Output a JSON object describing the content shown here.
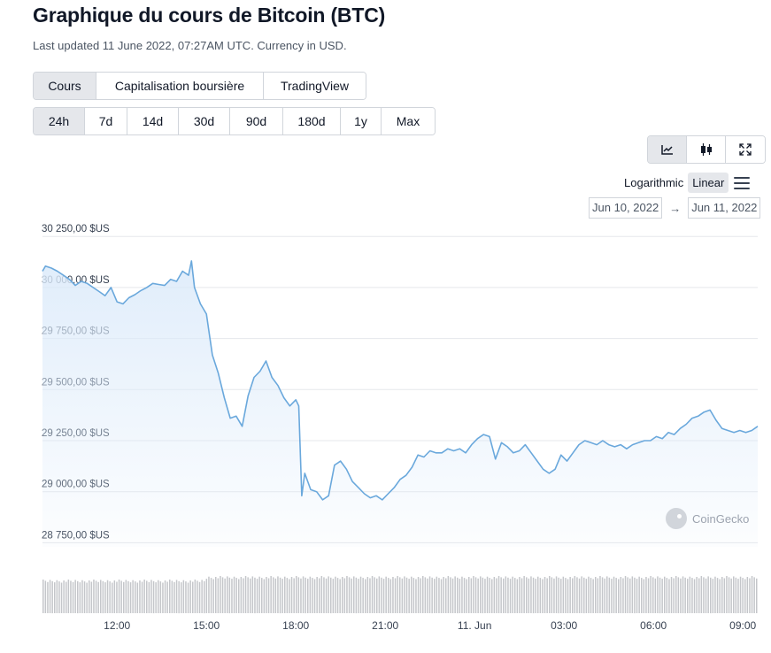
{
  "page": {
    "title": "Graphique du cours de Bitcoin (BTC)",
    "subtitle": "Last updated 11 June 2022, 07:27AM UTC. Currency in USD."
  },
  "type_tabs": [
    {
      "label": "Cours",
      "active": true
    },
    {
      "label": "Capitalisation boursière",
      "active": false
    },
    {
      "label": "TradingView",
      "active": false
    }
  ],
  "range_tabs": [
    {
      "label": "24h",
      "active": true
    },
    {
      "label": "7d",
      "active": false
    },
    {
      "label": "14d",
      "active": false
    },
    {
      "label": "30d",
      "active": false
    },
    {
      "label": "90d",
      "active": false
    },
    {
      "label": "180d",
      "active": false
    },
    {
      "label": "1y",
      "active": false
    },
    {
      "label": "Max",
      "active": false
    }
  ],
  "tools": [
    {
      "icon": "line-chart-icon",
      "active": true
    },
    {
      "icon": "candlestick-icon",
      "active": false
    },
    {
      "icon": "fullscreen-icon",
      "active": false
    }
  ],
  "scale": {
    "logarithmic": "Logarithmic",
    "linear": "Linear",
    "active": "linear"
  },
  "date_range": {
    "from": "Jun 10, 2022",
    "to": "Jun 11, 2022",
    "arrow": "→"
  },
  "watermark": "CoinGecko",
  "colors": {
    "line": "#6aa8dc",
    "fill_top": "#dbeafa",
    "grid": "#e5e7eb",
    "volume": "#c4c6ca",
    "active_bg": "#e5e7eb"
  },
  "chart_data": {
    "type": "area",
    "yticks": [
      "30 250,00 $US",
      "30 000,00 $US",
      "29 750,00 $US",
      "29 500,00 $US",
      "29 250,00 $US",
      "29 000,00 $US",
      "28 750,00 $US"
    ],
    "ytick_values": [
      30250,
      30000,
      29750,
      29500,
      29250,
      29000,
      28750
    ],
    "xticks": [
      "12:00",
      "15:00",
      "18:00",
      "21:00",
      "11. Jun",
      "03:00",
      "06:00",
      "09:00"
    ],
    "xtick_hours": [
      12,
      15,
      18,
      21,
      24,
      27,
      30,
      33
    ],
    "x_hours_range": [
      9.5,
      33.5
    ],
    "ylim": [
      28730,
      30290
    ],
    "grid": true,
    "series": [
      {
        "x": [
          9.5,
          9.6,
          9.8,
          10.0,
          10.2,
          10.4,
          10.6,
          10.8,
          11.0,
          11.2,
          11.4,
          11.6,
          11.8,
          12.0,
          12.2,
          12.4,
          12.6,
          12.8,
          13.0,
          13.2,
          13.4,
          13.6,
          13.8,
          14.0,
          14.2,
          14.4,
          14.5,
          14.6,
          14.8,
          15.0,
          15.2,
          15.4,
          15.6,
          15.8,
          16.0,
          16.2,
          16.4,
          16.6,
          16.8,
          17.0,
          17.2,
          17.4,
          17.6,
          17.8,
          18.0,
          18.1,
          18.2,
          18.3,
          18.5,
          18.7,
          18.9,
          19.1,
          19.3,
          19.5,
          19.7,
          19.9,
          20.1,
          20.3,
          20.5,
          20.7,
          20.9,
          21.1,
          21.3,
          21.5,
          21.7,
          21.9,
          22.1,
          22.3,
          22.5,
          22.7,
          22.9,
          23.1,
          23.3,
          23.5,
          23.7,
          23.9,
          24.1,
          24.3,
          24.5,
          24.7,
          24.9,
          25.1,
          25.3,
          25.5,
          25.7,
          25.9,
          26.1,
          26.3,
          26.5,
          26.7,
          26.9,
          27.1,
          27.3,
          27.5,
          27.7,
          27.9,
          28.1,
          28.3,
          28.5,
          28.7,
          28.9,
          29.1,
          29.3,
          29.5,
          29.7,
          29.9,
          30.1,
          30.3,
          30.5,
          30.7,
          30.9,
          31.1,
          31.3,
          31.5,
          31.7,
          31.9,
          32.1,
          32.3,
          32.5,
          32.7,
          32.9,
          33.1,
          33.3,
          33.5
        ],
        "y": [
          30080,
          30105,
          30095,
          30080,
          30060,
          30040,
          30010,
          30030,
          30020,
          30000,
          29980,
          29960,
          30000,
          29930,
          29920,
          29950,
          29965,
          29985,
          30000,
          30020,
          30015,
          30010,
          30040,
          30030,
          30080,
          30060,
          30130,
          30000,
          29920,
          29870,
          29670,
          29580,
          29460,
          29360,
          29370,
          29320,
          29470,
          29560,
          29590,
          29640,
          29560,
          29520,
          29460,
          29420,
          29450,
          29420,
          28980,
          29090,
          29010,
          29000,
          28960,
          28980,
          29130,
          29150,
          29110,
          29050,
          29020,
          28990,
          28970,
          28980,
          28960,
          28990,
          29020,
          29060,
          29080,
          29120,
          29180,
          29170,
          29200,
          29190,
          29190,
          29210,
          29200,
          29210,
          29190,
          29230,
          29260,
          29280,
          29270,
          29160,
          29240,
          29220,
          29190,
          29200,
          29230,
          29190,
          29150,
          29110,
          29090,
          29110,
          29180,
          29150,
          29190,
          29230,
          29250,
          29240,
          29230,
          29250,
          29230,
          29220,
          29230,
          29210,
          29230,
          29240,
          29250,
          29250,
          29270,
          29260,
          29290,
          29280,
          29310,
          29330,
          29360,
          29370,
          29390,
          29400,
          29350,
          29310,
          29300,
          29290,
          29300,
          29290,
          29300,
          29320
        ]
      }
    ]
  }
}
